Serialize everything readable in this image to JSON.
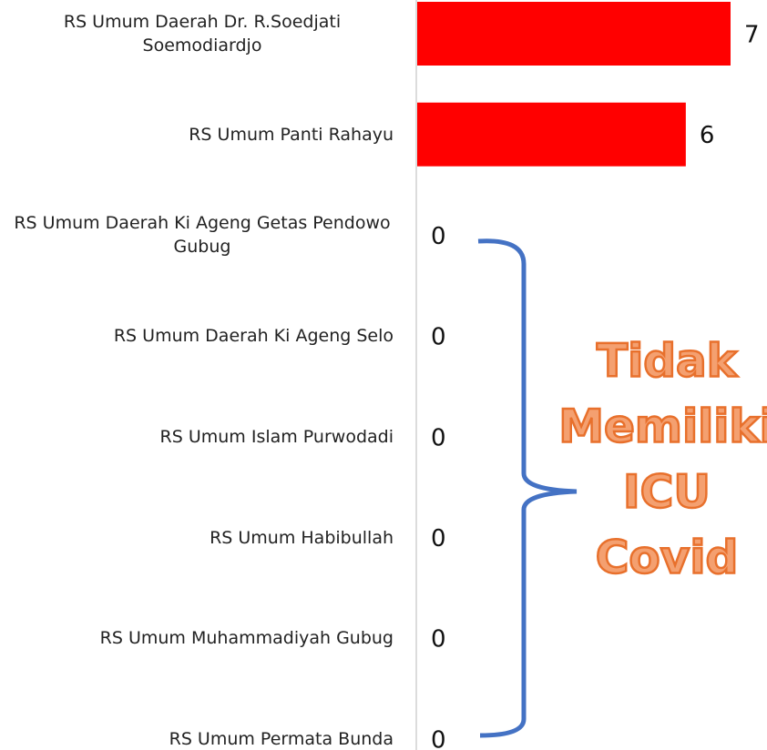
{
  "chart_data": {
    "type": "barh",
    "categories": [
      "RS Umum Daerah Dr. R.Soedjati Soemodiardjo",
      "RS Umum Panti Rahayu",
      "RS Umum Daerah Ki Ageng Getas Pendowo Gubug",
      "RS Umum Daerah Ki Ageng Selo",
      "RS Umum Islam Purwodadi",
      "RS Umum Habibullah",
      "RS Umum Muhammadiyah Gubug",
      "RS Umum Permata Bunda"
    ],
    "values": [
      7,
      6,
      0,
      0,
      0,
      0,
      0,
      0
    ],
    "color": "#ff0000",
    "xlim": [
      0,
      7
    ],
    "annotation": [
      "Tidak",
      "Memiliki",
      "ICU",
      "Covid"
    ]
  }
}
